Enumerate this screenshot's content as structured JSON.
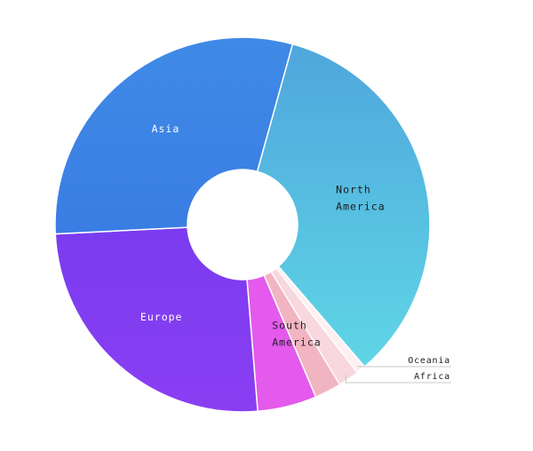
{
  "chart_data": {
    "type": "pie",
    "title": "",
    "slices": [
      {
        "label": "North America",
        "value": 34.4,
        "color_start": "#4fa6dc",
        "color_end": "#5fd6e6",
        "label_color": "#1a1a1a"
      },
      {
        "label": "Oceania",
        "value": 0.8,
        "color_start": "#fdeff2",
        "color_end": "#fdeff2",
        "label_color": "#222222"
      },
      {
        "label": "Africa",
        "value": 1.8,
        "color_start": "#f8d7de",
        "color_end": "#f8d7de",
        "label_color": "#222222"
      },
      {
        "label": "South America",
        "value": 2.3,
        "color_start": "#f1b5c1",
        "color_end": "#f1b5c1",
        "label_color": "#222222"
      },
      {
        "label": "",
        "value": 5.1,
        "color_start": "#e45aec",
        "color_end": "#e45aec",
        "label_color": "#ffffff"
      },
      {
        "label": "Europe",
        "value": 25.5,
        "color_start": "#7a3cf0",
        "color_end": "#8a3ef2",
        "label_color": "#ffffff"
      },
      {
        "label": "Asia",
        "value": 30.1,
        "color_start": "#3f8ae6",
        "color_end": "#3a7de4",
        "label_color": "#ffffff"
      }
    ],
    "legend": "none"
  }
}
